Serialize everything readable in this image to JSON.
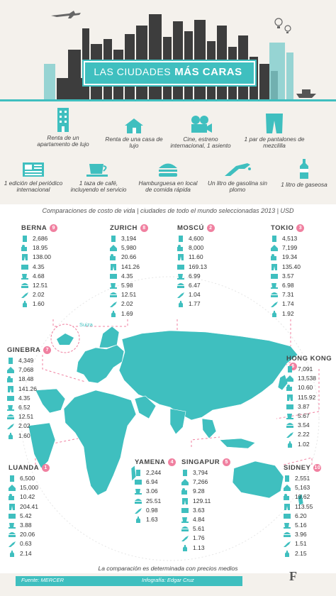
{
  "header": {
    "title_prefix": "Las ciudades",
    "title_bold": "más caras"
  },
  "legend": [
    {
      "label": "Renta de un apartamento de lujo",
      "icon": "building-icon"
    },
    {
      "label": "Renta de una casa de lujo",
      "icon": "house-icon"
    },
    {
      "label": "Cine, estreno internacional, 1 asiento",
      "icon": "film-camera-icon"
    },
    {
      "label": "1 par de pantalones de mezclilla",
      "icon": "jeans-icon"
    },
    {
      "label": "1 edición del periódico internacional",
      "icon": "newspaper-icon"
    },
    {
      "label": "1 taza de café, incluyendo el servicio",
      "icon": "coffee-cup-icon"
    },
    {
      "label": "Hamburguesa en local de comida rápida",
      "icon": "burger-icon"
    },
    {
      "label": "Un litro de gasolina sin plomo",
      "icon": "fuel-nozzle-icon"
    },
    {
      "label": "1 litro de gaseosa",
      "icon": "soda-bottle-icon"
    }
  ],
  "subtitle": "Comparaciones de costo de vida | ciudades de todo el mundo seleccionadas 2013 | USD",
  "cities": [
    {
      "name": "BERNA",
      "rank": "9",
      "values": [
        "2,686",
        "18.95",
        "138.00",
        "4.35",
        "4.68",
        "12.51",
        "2.02",
        "1.60"
      ]
    },
    {
      "name": "ZURICH",
      "rank": "8",
      "values": [
        "3,194",
        "5,980",
        "20.66",
        "141.26",
        "4.35",
        "5.98",
        "12.51",
        "2.02",
        "1.69"
      ]
    },
    {
      "name": "MOSCÚ",
      "rank": "2",
      "values": [
        "4,600",
        "8,000",
        "11.60",
        "169.13",
        "6.99",
        "6.47",
        "1.04",
        "1.77"
      ]
    },
    {
      "name": "TOKIO",
      "rank": "3",
      "values": [
        "4,513",
        "7,199",
        "19.34",
        "135.40",
        "3.57",
        "6.98",
        "7.31",
        "1.74",
        "1.92"
      ]
    },
    {
      "name": "GINEBRA",
      "rank": "7",
      "values": [
        "4,349",
        "7,068",
        "18.48",
        "141.26",
        "4.35",
        "6.52",
        "12.51",
        "2.02",
        "1.60"
      ]
    },
    {
      "name": "HONG KONG",
      "rank": "6",
      "values": [
        "7,091",
        "13,538",
        "10.60",
        "115.92",
        "3.87",
        "5.67",
        "3.54",
        "2.22",
        "1.02"
      ]
    },
    {
      "name": "LUANDA",
      "rank": "1",
      "values": [
        "6,500",
        "15,000",
        "10.42",
        "204.41",
        "5.42",
        "3.88",
        "20.06",
        "0.63",
        "2.14"
      ]
    },
    {
      "name": "YAMENA",
      "rank": "4",
      "values": [
        "2,244",
        "6.94",
        "3.06",
        "25.51",
        "0.98",
        "1.63"
      ]
    },
    {
      "name": "SINGAPUR",
      "rank": "5",
      "values": [
        "3,794",
        "7,266",
        "9.28",
        "129.11",
        "3.63",
        "4.84",
        "5.61",
        "1.76",
        "1.13"
      ]
    },
    {
      "name": "SIDNEY",
      "rank": "10",
      "values": [
        "2,551",
        "5,163",
        "19.62",
        "113.55",
        "6.20",
        "5.16",
        "3.96",
        "1.51",
        "2.15"
      ]
    }
  ],
  "map_label": "Suiza",
  "footer": {
    "note": "La comparación es determinada con precios medios",
    "source": "Fuente: MERCER",
    "credit": "Infografía: Edgar Cruz",
    "brand": "F"
  },
  "colors": {
    "accent": "#3fbfbf",
    "badge": "#f080a0",
    "building": "#4a4a4a"
  }
}
